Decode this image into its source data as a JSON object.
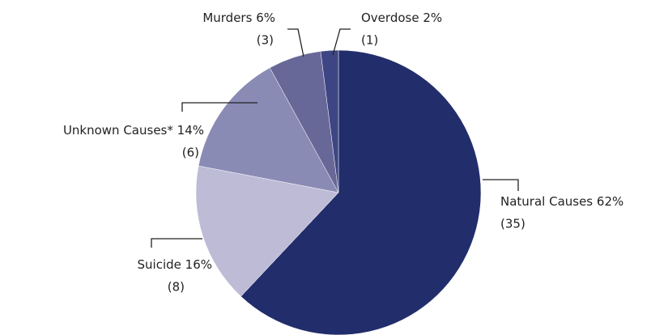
{
  "chart_data": {
    "type": "pie",
    "categories": [
      "Natural Causes",
      "Suicide",
      "Unknown Causes*",
      "Murders",
      "Overdose"
    ],
    "values": [
      62,
      16,
      14,
      6,
      2
    ],
    "value_labels": [
      "62%",
      "16%",
      "14%",
      "6%",
      "2%"
    ],
    "count_labels": [
      "(35)",
      "(8)",
      "(6)",
      "(3)",
      "(1)"
    ],
    "colors": [
      "#222d6b",
      "#bdbbd6",
      "#8a8bb5",
      "#686898",
      "#3d4584"
    ]
  }
}
